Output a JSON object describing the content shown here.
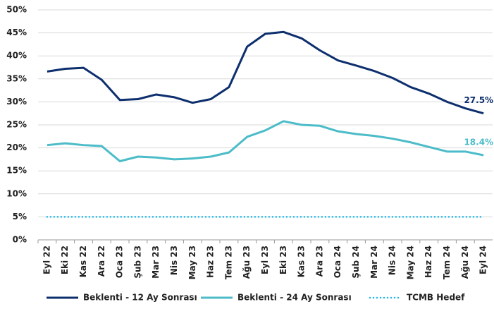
{
  "chart_data": {
    "type": "line",
    "categories": [
      "Eyl 22",
      "Eki 22",
      "Kas 22",
      "Ara 22",
      "Oca 23",
      "Şub 23",
      "Mar 23",
      "Nis 23",
      "May 23",
      "Haz 23",
      "Tem 23",
      "Ağu 23",
      "Eyl 23",
      "Eki 23",
      "Kas 23",
      "Ara 23",
      "Oca 24",
      "Şub 24",
      "Mar 24",
      "Nis 24",
      "May 24",
      "Haz 24",
      "Tem 24",
      "Ağu 24",
      "Eyl 24"
    ],
    "series": [
      {
        "name": "Beklenti - 12 Ay Sonrası",
        "color": "#0d2f6e",
        "style": "solid",
        "values": [
          36.6,
          37.2,
          37.4,
          34.8,
          30.4,
          30.6,
          31.6,
          31.0,
          29.8,
          30.6,
          33.2,
          42.0,
          44.8,
          45.2,
          43.8,
          41.2,
          39.0,
          37.9,
          36.7,
          35.2,
          33.2,
          31.8,
          30.0,
          28.6,
          27.5
        ],
        "value_labels": [
          null,
          null,
          null,
          null,
          null,
          null,
          null,
          null,
          null,
          null,
          null,
          null,
          null,
          null,
          null,
          null,
          null,
          null,
          null,
          null,
          null,
          null,
          null,
          null,
          "27.5%"
        ]
      },
      {
        "name": "Beklenti - 24 Ay Sonrası",
        "color": "#4bbcc8",
        "style": "solid",
        "values": [
          20.6,
          21.0,
          20.6,
          20.4,
          17.1,
          18.1,
          17.9,
          17.5,
          17.7,
          18.1,
          19.0,
          22.4,
          23.8,
          25.8,
          25.0,
          24.8,
          23.6,
          23.0,
          22.6,
          22.0,
          21.2,
          20.2,
          19.2,
          19.2,
          18.4
        ],
        "value_labels": [
          null,
          null,
          null,
          null,
          null,
          null,
          null,
          null,
          null,
          null,
          null,
          null,
          null,
          null,
          null,
          null,
          null,
          null,
          null,
          null,
          null,
          null,
          null,
          null,
          "18.4%"
        ]
      },
      {
        "name": "TCMB Hedef",
        "color": "#19b5e6",
        "style": "dotted",
        "values": [
          5,
          5,
          5,
          5,
          5,
          5,
          5,
          5,
          5,
          5,
          5,
          5,
          5,
          5,
          5,
          5,
          5,
          5,
          5,
          5,
          5,
          5,
          5,
          5,
          5
        ]
      }
    ],
    "ylim": [
      0,
      50
    ],
    "yticks": [
      {
        "value": 0,
        "label": "0%"
      },
      {
        "value": 5,
        "label": "5%"
      },
      {
        "value": 10,
        "label": "10%"
      },
      {
        "value": 15,
        "label": "15%"
      },
      {
        "value": 20,
        "label": "20%"
      },
      {
        "value": 25,
        "label": "25%"
      },
      {
        "value": 30,
        "label": "30%"
      },
      {
        "value": 35,
        "label": "35%"
      },
      {
        "value": 40,
        "label": "40%"
      },
      {
        "value": 45,
        "label": "45%"
      },
      {
        "value": 50,
        "label": "50%"
      }
    ],
    "grid": true,
    "legend": "bottom"
  }
}
